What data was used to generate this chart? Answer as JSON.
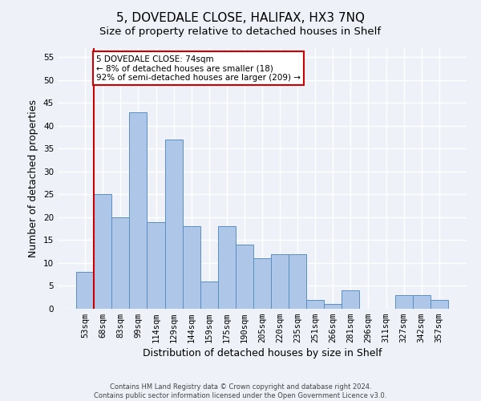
{
  "title": "5, DOVEDALE CLOSE, HALIFAX, HX3 7NQ",
  "subtitle": "Size of property relative to detached houses in Shelf",
  "xlabel": "Distribution of detached houses by size in Shelf",
  "ylabel": "Number of detached properties",
  "categories": [
    "53sqm",
    "68sqm",
    "83sqm",
    "99sqm",
    "114sqm",
    "129sqm",
    "144sqm",
    "159sqm",
    "175sqm",
    "190sqm",
    "205sqm",
    "220sqm",
    "235sqm",
    "251sqm",
    "266sqm",
    "281sqm",
    "296sqm",
    "311sqm",
    "327sqm",
    "342sqm",
    "357sqm"
  ],
  "values": [
    8,
    25,
    20,
    43,
    19,
    37,
    18,
    6,
    18,
    14,
    11,
    12,
    12,
    2,
    1,
    4,
    0,
    0,
    3,
    3,
    2
  ],
  "bar_color": "#aec6e8",
  "bar_edge_color": "#5a8fc2",
  "annotation_text": "5 DOVEDALE CLOSE: 74sqm\n← 8% of detached houses are smaller (18)\n92% of semi-detached houses are larger (209) →",
  "annotation_box_color": "#ffffff",
  "annotation_box_edge_color": "#cc0000",
  "vline_color": "#cc0000",
  "vline_x": 1,
  "ylim": [
    0,
    57
  ],
  "yticks": [
    0,
    5,
    10,
    15,
    20,
    25,
    30,
    35,
    40,
    45,
    50,
    55
  ],
  "title_fontsize": 11,
  "subtitle_fontsize": 9.5,
  "xlabel_fontsize": 9,
  "ylabel_fontsize": 9,
  "tick_fontsize": 7.5,
  "annot_fontsize": 7.5,
  "footer_line1": "Contains HM Land Registry data © Crown copyright and database right 2024.",
  "footer_line2": "Contains public sector information licensed under the Open Government Licence v3.0.",
  "bg_color": "#eef2f8",
  "grid_color": "#ffffff"
}
